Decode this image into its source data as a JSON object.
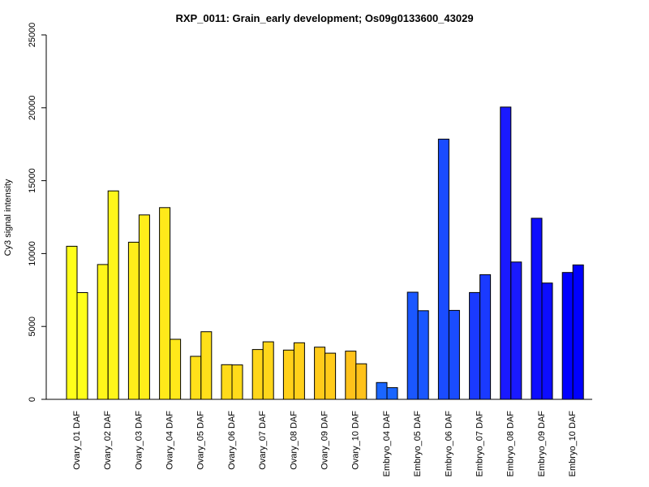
{
  "chart_data": {
    "type": "bar",
    "title": "RXP_0011: Grain_early development; Os09g0133600_43029",
    "xlabel": "",
    "ylabel": "Cy3 signal intensity",
    "ylim": [
      0,
      25000
    ],
    "yticks": [
      0,
      5000,
      10000,
      15000,
      20000,
      25000
    ],
    "grid": false,
    "legend": "none",
    "categories": [
      "Ovary_01 DAF",
      "Ovary_02 DAF",
      "Ovary_03 DAF",
      "Ovary_04 DAF",
      "Ovary_05 DAF",
      "Ovary_06 DAF",
      "Ovary_07 DAF",
      "Ovary_08 DAF",
      "Ovary_09 DAF",
      "Ovary_10 DAF",
      "Embryo_04 DAF",
      "Embryo_05 DAF",
      "Embryo_06 DAF",
      "Embryo_07 DAF",
      "Embryo_08 DAF",
      "Embryo_09 DAF",
      "Embryo_10 DAF"
    ],
    "colors": [
      "#ffff1a",
      "#fff61a",
      "#ffee1a",
      "#ffe91a",
      "#ffe01a",
      "#ffdb1a",
      "#ffd61a",
      "#ffd01a",
      "#ffcb1a",
      "#ffc21a",
      "#1a66ff",
      "#1a57ff",
      "#1a4cff",
      "#1a3aff",
      "#1a1aff",
      "#0d0dff",
      "#0000ff"
    ],
    "series": [
      {
        "values": [
          10500,
          9250,
          10780,
          13150,
          2950,
          2380,
          3420,
          3380,
          3580,
          3310,
          1150,
          7350,
          17850,
          7330,
          20050,
          12420,
          8700
        ]
      },
      {
        "values": [
          7320,
          14300,
          12650,
          4120,
          4640,
          2360,
          3950,
          3880,
          3170,
          2440,
          800,
          6080,
          6100,
          8550,
          9420,
          7980,
          9220
        ]
      }
    ]
  }
}
